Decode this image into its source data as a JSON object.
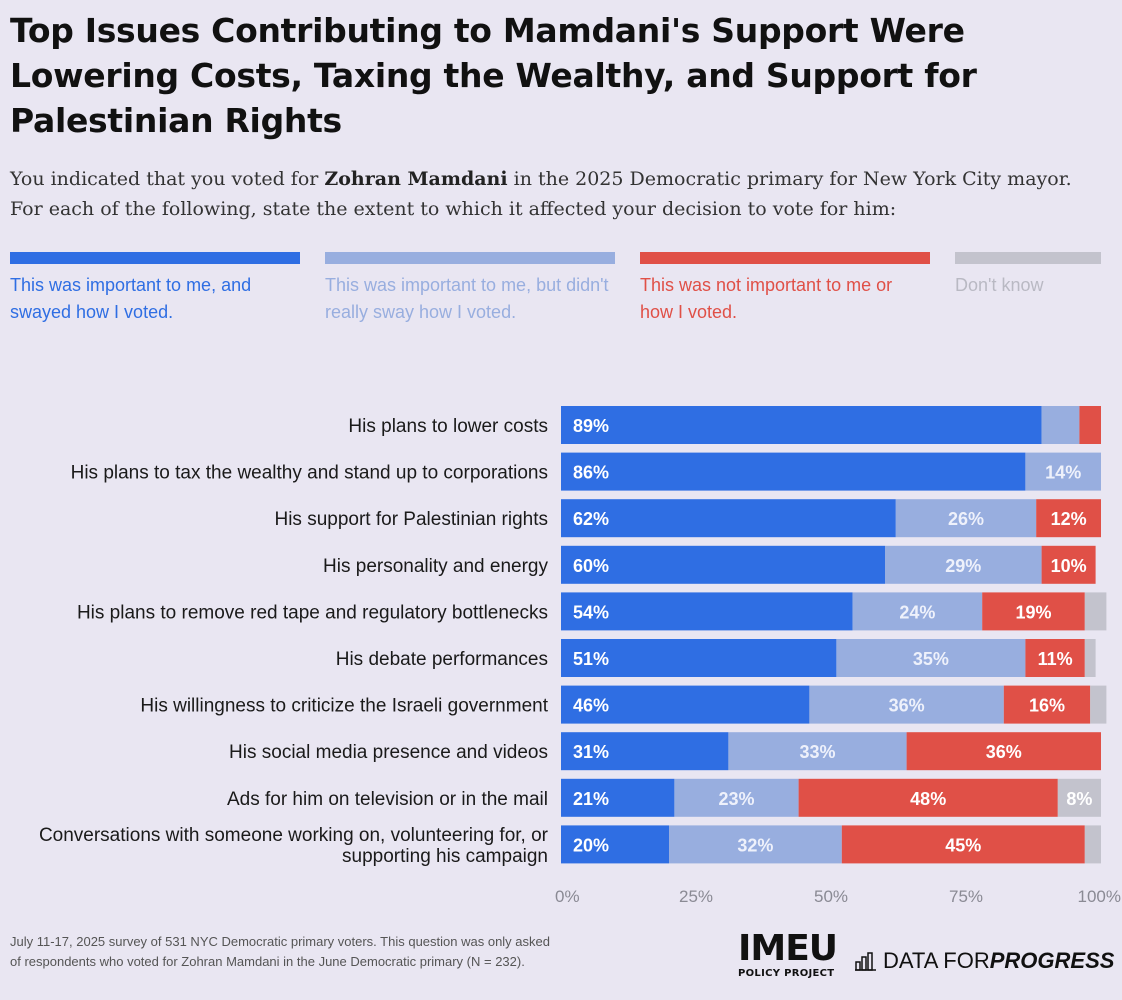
{
  "title": "Top Issues Contributing to Mamdani's Support Were Lowering Costs, Taxing the Wealthy, and Support for Palestinian Rights",
  "subtitle": {
    "before": "You indicated that you voted for ",
    "bold": "Zohran Mamdani",
    "after": " in the 2025 Democratic primary for New York City mayor. For each of the following, state the extent to which it affected your decision to vote for him:"
  },
  "colors": {
    "swayed": "#2f6ee3",
    "important_no_sway": "#98aedf",
    "not_important": "#e05047",
    "dont_know": "#c3c3cd",
    "axis_text": "#8a8a94"
  },
  "legend": [
    "This was important to me, and swayed how I voted.",
    "This was important to me, but didn't really sway how I voted.",
    "This was not important to me or how I voted.",
    "Don't know"
  ],
  "chart_data": {
    "type": "bar",
    "orientation": "horizontal",
    "stacked": true,
    "xlim": [
      0,
      100
    ],
    "x_ticks": [
      "0%",
      "25%",
      "50%",
      "75%",
      "100%"
    ],
    "categories": [
      "His plans to lower costs",
      "His plans to tax the wealthy and stand up to corporations",
      "His support for Palestinian rights",
      "His personality and energy",
      "His plans to remove red tape and regulatory bottlenecks",
      "His debate performances",
      "His willingness to criticize the Israeli government",
      "His social media presence and videos",
      "Ads for him on television or in the mail",
      "Conversations with someone working on, volunteering for, or supporting his campaign"
    ],
    "series": [
      {
        "name": "This was important to me, and swayed how I voted.",
        "values": [
          89,
          86,
          62,
          60,
          54,
          51,
          46,
          31,
          21,
          20
        ]
      },
      {
        "name": "This was important to me, but didn't really sway how I voted.",
        "values": [
          7,
          14,
          26,
          29,
          24,
          35,
          36,
          33,
          23,
          32
        ]
      },
      {
        "name": "This was not important to me or how I voted.",
        "values": [
          4,
          0,
          12,
          10,
          19,
          11,
          16,
          36,
          48,
          45
        ]
      },
      {
        "name": "Don't know",
        "values": [
          0,
          0,
          0,
          0,
          4,
          2,
          3,
          0,
          8,
          3
        ]
      }
    ],
    "data_labels": [
      [
        "89%",
        "",
        "",
        ""
      ],
      [
        "86%",
        "14%",
        "",
        ""
      ],
      [
        "62%",
        "26%",
        "12%",
        ""
      ],
      [
        "60%",
        "29%",
        "10%",
        ""
      ],
      [
        "54%",
        "24%",
        "19%",
        ""
      ],
      [
        "51%",
        "35%",
        "11%",
        ""
      ],
      [
        "46%",
        "36%",
        "16%",
        ""
      ],
      [
        "31%",
        "33%",
        "36%",
        ""
      ],
      [
        "21%",
        "23%",
        "48%",
        "8%"
      ],
      [
        "20%",
        "32%",
        "45%",
        ""
      ]
    ]
  },
  "footnote": "July 11-17, 2025 survey of 531 NYC Democratic primary voters. This question was only asked of respondents who voted for Zohran Mamdani in the June Democratic primary (N = 232).",
  "logos": {
    "imeu": "IMEU",
    "imeu_sub": "POLICY PROJECT",
    "dfp_regular": "DATA FOR ",
    "dfp_bold": "PROGRESS"
  }
}
